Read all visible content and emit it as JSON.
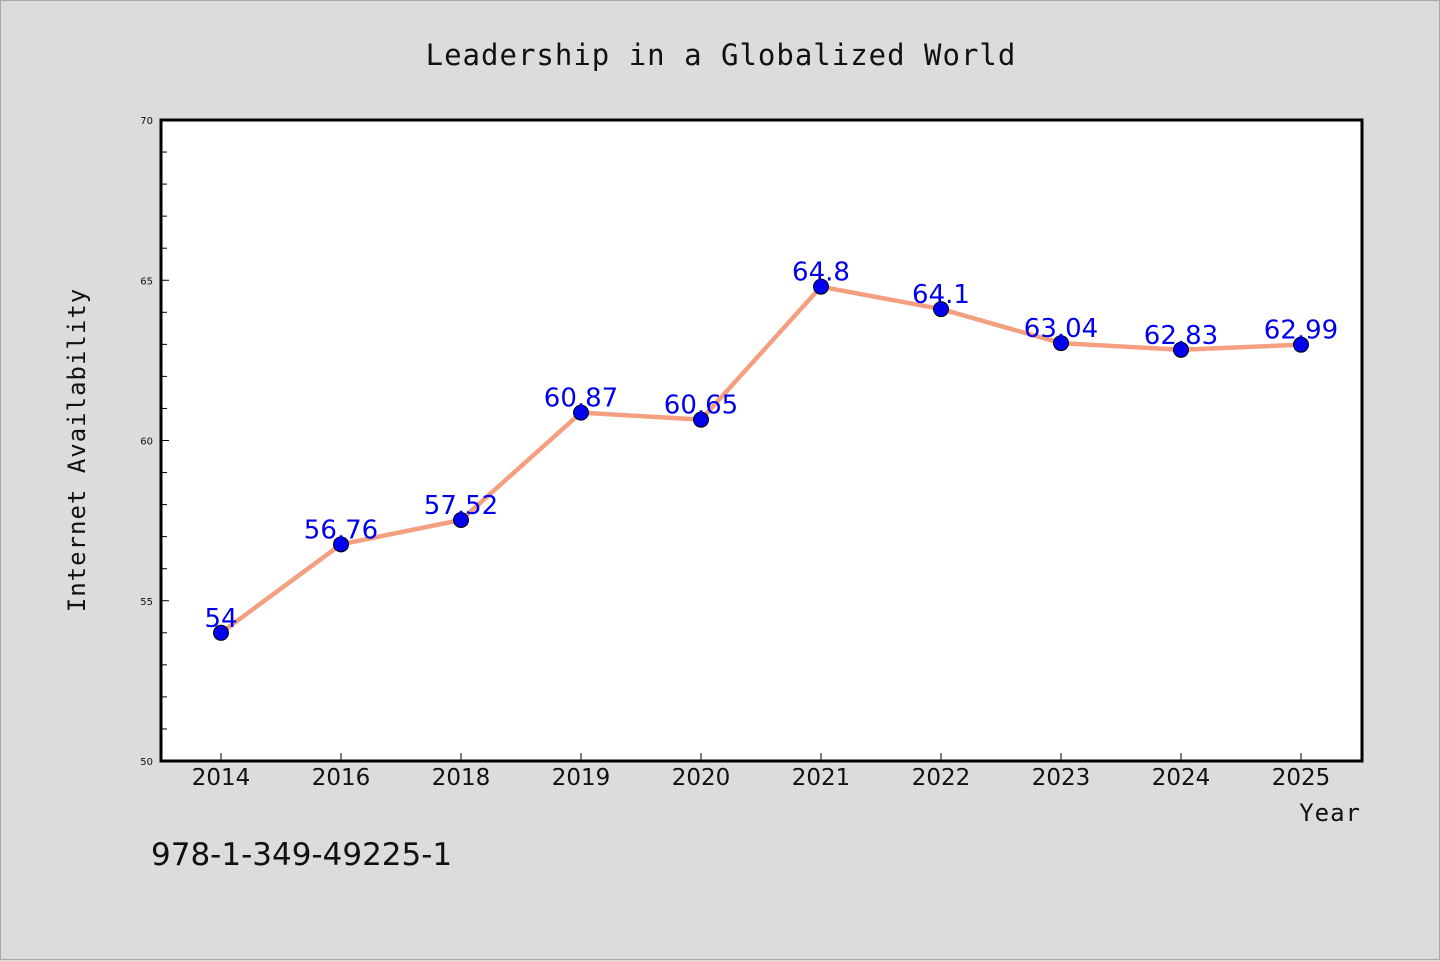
{
  "chart_data": {
    "type": "line",
    "title": "Leadership in a Globalized World",
    "xlabel": "Year",
    "ylabel": "Internet Availability",
    "categories": [
      "2014",
      "2016",
      "2018",
      "2019",
      "2020",
      "2021",
      "2022",
      "2023",
      "2024",
      "2025"
    ],
    "series": [
      {
        "values": [
          54,
          56.76,
          57.52,
          60.87,
          60.65,
          64.8,
          64.1,
          63.04,
          62.83,
          62.99
        ],
        "data_labels": [
          "54",
          "56.76",
          "57.52",
          "60.87",
          "60.65",
          "64.8",
          "64.1",
          "63.04",
          "62.83",
          "62.99"
        ]
      }
    ],
    "ylim": [
      50,
      70
    ],
    "yticks": [
      50,
      55,
      60,
      65,
      70
    ],
    "ytick_labels": [
      "50",
      "55",
      "60",
      "65",
      "70"
    ],
    "grid": false,
    "legend": "none",
    "colors": {
      "line": "#f4a080",
      "marker": "#0000ee",
      "data_label": "#0000ee",
      "plot_background": "#ffffff",
      "page_background": "#dcdcdc"
    }
  },
  "footer": {
    "isbn": "978-1-349-49225-1"
  }
}
